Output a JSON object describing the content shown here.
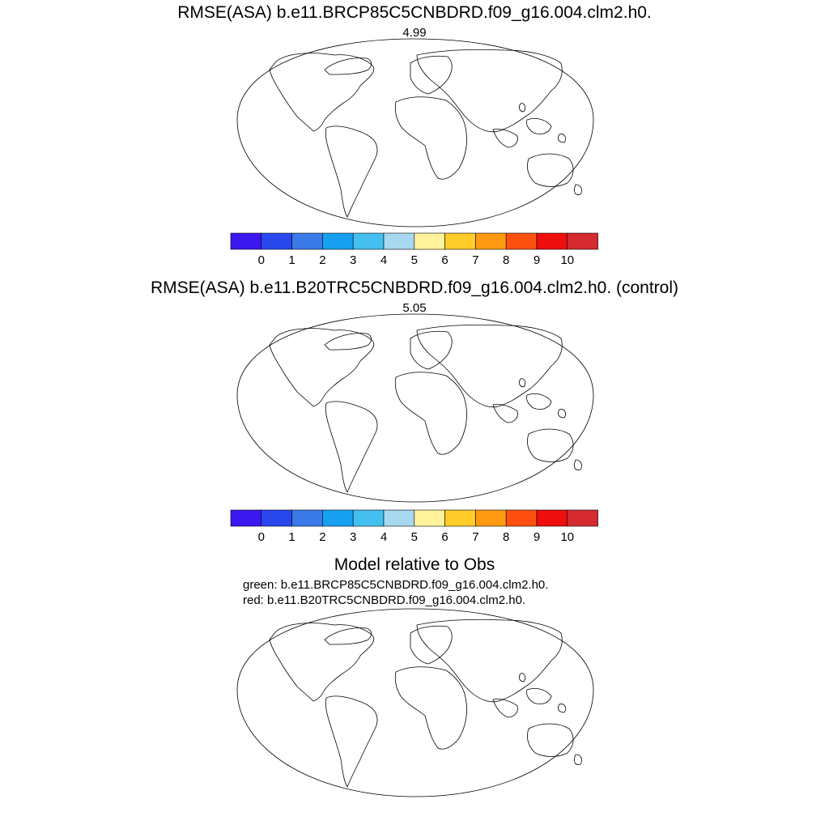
{
  "panels": [
    {
      "title": "RMSE(ASA) b.e11.BRCP85C5CNBDRD.f09_g16.004.clm2.h0.",
      "mean_value": "4.99"
    },
    {
      "title": "RMSE(ASA) b.e11.B20TRC5CNBDRD.f09_g16.004.clm2.h0. (control)",
      "mean_value": "5.05"
    }
  ],
  "colorbar": {
    "tick_labels": [
      "0",
      "1",
      "2",
      "3",
      "4",
      "5",
      "6",
      "7",
      "8",
      "9",
      "10"
    ],
    "colors": [
      "#3c18f0",
      "#2848ee",
      "#3a7ae8",
      "#17a0f0",
      "#44c0f0",
      "#a8d8f0",
      "#fff29a",
      "#ffcc2a",
      "#ff9a12",
      "#ff5010",
      "#ee0e0e",
      "#d42a30"
    ]
  },
  "comparison": {
    "title": "Model relative to Obs",
    "legend_green": "green: b.e11.BRCP85C5CNBDRD.f09_g16.004.clm2.h0.",
    "legend_red": "red: b.e11.B20TRC5CNBDRD.f09_g16.004.clm2.h0.",
    "green_color": "#22e01c",
    "red_color": "#ee0000"
  },
  "map_colors": {
    "background": "#ffffff",
    "coast": "#000000",
    "low": "#2848ee",
    "mid": "#3a7ae8",
    "high": "#d42a30"
  }
}
